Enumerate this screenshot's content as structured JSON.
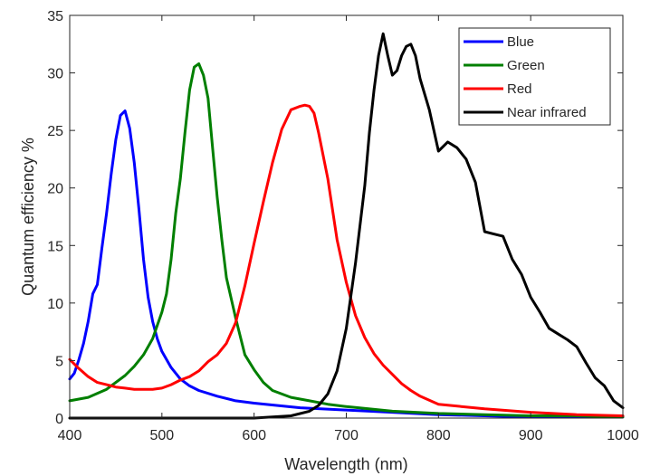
{
  "chart_data": {
    "type": "line",
    "title": "",
    "xlabel": "Wavelength (nm)",
    "ylabel": "Quantum efficiency %",
    "xlim": [
      400,
      1000
    ],
    "ylim": [
      0,
      35
    ],
    "xticks": [
      400,
      500,
      600,
      700,
      800,
      900,
      1000
    ],
    "yticks": [
      0,
      5,
      10,
      15,
      20,
      25,
      30,
      35
    ],
    "grid": false,
    "legend_position": "top-right",
    "series": [
      {
        "name": "Blue",
        "color": "#0000ff",
        "x": [
          400,
          405,
          410,
          415,
          420,
          425,
          430,
          435,
          440,
          445,
          450,
          455,
          460,
          465,
          470,
          475,
          480,
          485,
          490,
          495,
          500,
          510,
          520,
          530,
          540,
          560,
          580,
          600,
          650,
          700,
          750,
          800,
          850,
          900,
          950,
          1000
        ],
        "y": [
          3.4,
          3.9,
          5.1,
          6.5,
          8.4,
          10.8,
          11.6,
          14.8,
          17.8,
          21.2,
          24.2,
          26.3,
          26.7,
          25.2,
          22.2,
          18.2,
          13.8,
          10.5,
          8.4,
          6.9,
          5.8,
          4.4,
          3.4,
          2.8,
          2.4,
          1.9,
          1.5,
          1.3,
          0.9,
          0.7,
          0.5,
          0.3,
          0.2,
          0.1,
          0.1,
          0.1
        ]
      },
      {
        "name": "Green",
        "color": "#007f00",
        "x": [
          400,
          420,
          440,
          460,
          470,
          480,
          490,
          500,
          505,
          510,
          515,
          520,
          525,
          530,
          535,
          540,
          545,
          550,
          555,
          560,
          565,
          570,
          580,
          590,
          600,
          610,
          620,
          640,
          660,
          680,
          700,
          750,
          800,
          850,
          900,
          950,
          1000
        ],
        "y": [
          1.5,
          1.8,
          2.5,
          3.7,
          4.5,
          5.5,
          6.9,
          9.2,
          10.8,
          13.8,
          17.8,
          20.8,
          24.8,
          28.5,
          30.5,
          30.8,
          29.8,
          27.8,
          23.5,
          19.2,
          15.5,
          12.2,
          8.7,
          5.5,
          4.2,
          3.1,
          2.4,
          1.8,
          1.5,
          1.2,
          1.0,
          0.6,
          0.4,
          0.3,
          0.2,
          0.2,
          0.1
        ]
      },
      {
        "name": "Red",
        "color": "#ff0000",
        "x": [
          400,
          410,
          420,
          430,
          440,
          450,
          460,
          470,
          480,
          490,
          500,
          510,
          520,
          530,
          540,
          550,
          560,
          570,
          580,
          590,
          600,
          610,
          620,
          630,
          640,
          650,
          655,
          660,
          665,
          670,
          680,
          690,
          700,
          710,
          720,
          730,
          740,
          750,
          760,
          770,
          780,
          800,
          850,
          900,
          950,
          1000
        ],
        "y": [
          5.1,
          4.3,
          3.6,
          3.1,
          2.9,
          2.7,
          2.6,
          2.5,
          2.5,
          2.5,
          2.6,
          2.9,
          3.3,
          3.6,
          4.1,
          4.9,
          5.5,
          6.5,
          8.3,
          11.5,
          15.2,
          18.8,
          22.2,
          25.1,
          26.8,
          27.1,
          27.2,
          27.1,
          26.5,
          24.8,
          20.8,
          15.5,
          11.8,
          8.9,
          7.0,
          5.6,
          4.6,
          3.8,
          3.0,
          2.4,
          1.9,
          1.2,
          0.8,
          0.5,
          0.3,
          0.2
        ]
      },
      {
        "name": "Near infrared",
        "color": "#000000",
        "x": [
          400,
          600,
          620,
          640,
          660,
          670,
          680,
          690,
          700,
          710,
          720,
          725,
          730,
          735,
          740,
          745,
          750,
          755,
          760,
          765,
          770,
          775,
          780,
          790,
          800,
          810,
          820,
          830,
          840,
          850,
          860,
          870,
          880,
          890,
          900,
          910,
          920,
          930,
          940,
          950,
          960,
          970,
          980,
          990,
          1000
        ],
        "y": [
          0,
          0,
          0.1,
          0.2,
          0.6,
          1.1,
          2.1,
          4.1,
          7.8,
          13.5,
          20.2,
          24.8,
          28.5,
          31.5,
          33.4,
          31.5,
          29.8,
          30.2,
          31.5,
          32.3,
          32.5,
          31.5,
          29.5,
          26.8,
          23.2,
          24.0,
          23.5,
          22.5,
          20.5,
          16.2,
          16.0,
          15.8,
          13.8,
          12.5,
          10.5,
          9.2,
          7.8,
          7.3,
          6.8,
          6.2,
          4.8,
          3.5,
          2.8,
          1.5,
          0.9
        ]
      }
    ]
  }
}
